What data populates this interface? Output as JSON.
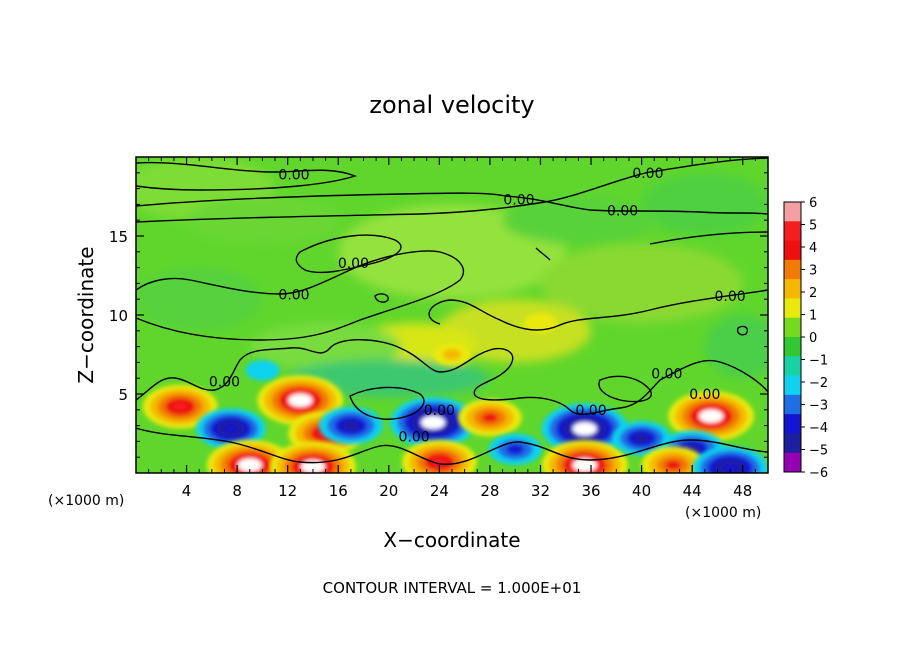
{
  "chart_data": {
    "type": "heatmap",
    "title": "zonal velocity",
    "xlabel": "X−coordinate",
    "ylabel": "Z−coordinate",
    "x_unit": "(×1000 m)",
    "x_unit_right": "(×1000 m)",
    "xlim": [
      0,
      50
    ],
    "ylim": [
      0,
      20
    ],
    "x_ticks": [
      4,
      8,
      12,
      16,
      20,
      24,
      28,
      32,
      36,
      40,
      44,
      48
    ],
    "y_ticks": [
      5,
      10,
      15
    ],
    "colorbar": {
      "ticks": [
        6,
        5,
        4,
        3,
        2,
        1,
        0,
        -1,
        -2,
        -3,
        -4,
        -5,
        -6
      ],
      "tick_labels": [
        "6",
        "5",
        "4",
        "3",
        "2",
        "1",
        "0",
        "−1",
        "−2",
        "−3",
        "−4",
        "−5",
        "−6"
      ],
      "colors": [
        "#f4a0a0",
        "#f41e1e",
        "#ee1010",
        "#f27b06",
        "#f5b800",
        "#e9e90d",
        "#74da1e",
        "#32c832",
        "#18d2a6",
        "#10d2f0",
        "#1e6ee6",
        "#1414d2",
        "#1e1ea0",
        "#9600b4"
      ]
    },
    "features": [
      {
        "type": "positive",
        "x": 3.5,
        "z": 4.2,
        "amplitude": 5
      },
      {
        "type": "negative",
        "x": 7.5,
        "z": 2.8,
        "amplitude": 4.5
      },
      {
        "type": "positive",
        "x": 13,
        "z": 4.6,
        "amplitude": 6
      },
      {
        "type": "positive",
        "x": 15,
        "z": 2.5,
        "amplitude": 5
      },
      {
        "type": "negative",
        "x": 17,
        "z": 3.0,
        "amplitude": 4
      },
      {
        "type": "positive",
        "x": 9,
        "z": 0.5,
        "amplitude": 6
      },
      {
        "type": "positive",
        "x": 14,
        "z": 0.4,
        "amplitude": 6
      },
      {
        "type": "negative",
        "x": 23.5,
        "z": 3.2,
        "amplitude": 6
      },
      {
        "type": "positive",
        "x": 24,
        "z": 0.7,
        "amplitude": 5
      },
      {
        "type": "positive",
        "x": 28,
        "z": 3.5,
        "amplitude": 4
      },
      {
        "type": "negative",
        "x": 30,
        "z": 1.5,
        "amplitude": 3
      },
      {
        "type": "negative",
        "x": 35.5,
        "z": 2.8,
        "amplitude": 6
      },
      {
        "type": "positive",
        "x": 35.5,
        "z": 0.5,
        "amplitude": 6
      },
      {
        "type": "negative",
        "x": 40,
        "z": 2.2,
        "amplitude": 3.5
      },
      {
        "type": "positive",
        "x": 45.5,
        "z": 3.6,
        "amplitude": 6
      },
      {
        "type": "negative",
        "x": 44,
        "z": 1.5,
        "amplitude": 4
      },
      {
        "type": "positive",
        "x": 42.5,
        "z": 0.5,
        "amplitude": 4
      },
      {
        "type": "negative",
        "x": 47,
        "z": 0.3,
        "amplitude": 5
      },
      {
        "type": "positive",
        "x": 25,
        "z": 7.5,
        "amplitude": 1.6
      },
      {
        "type": "positive",
        "x": 32,
        "z": 9.5,
        "amplitude": 1.2
      },
      {
        "type": "negative",
        "x": 10,
        "z": 6.5,
        "amplitude": 1.3
      }
    ],
    "contour_labels": [
      {
        "text": "0.00",
        "x": 12.5,
        "z": 18.9
      },
      {
        "text": "0.00",
        "x": 40.5,
        "z": 19.0
      },
      {
        "text": "0.00",
        "x": 30.3,
        "z": 17.3
      },
      {
        "text": "0.00",
        "x": 38.5,
        "z": 16.6
      },
      {
        "text": "0.00",
        "x": 17.2,
        "z": 13.3
      },
      {
        "text": "0.00",
        "x": 12.5,
        "z": 11.3
      },
      {
        "text": "0.00",
        "x": 47.0,
        "z": 11.2
      },
      {
        "text": "0.00",
        "x": 7.0,
        "z": 5.8
      },
      {
        "text": "0.00",
        "x": 42.0,
        "z": 6.3
      },
      {
        "text": "0.00",
        "x": 24.0,
        "z": 4.0
      },
      {
        "text": "0.00",
        "x": 36.0,
        "z": 4.0
      },
      {
        "text": "0.00",
        "x": 45.0,
        "z": 5.0
      },
      {
        "text": "0.00",
        "x": 22.0,
        "z": 2.3
      }
    ]
  },
  "footer": {
    "contour_interval": "CONTOUR INTERVAL = 1.000E+01"
  }
}
